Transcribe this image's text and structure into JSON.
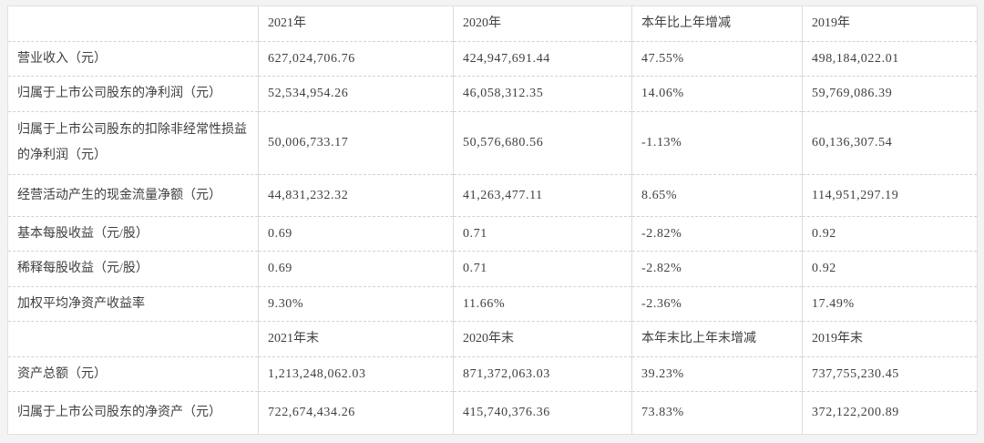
{
  "page": {
    "background_color": "#f3f3f3",
    "table_background_color": "#ffffff",
    "border_color": "#dcdcdc",
    "text_color": "#3f3f3f"
  },
  "table": {
    "section1": {
      "header": [
        "",
        "2021年",
        "2020年",
        "本年比上年增减",
        "2019年"
      ],
      "rows": [
        {
          "label": "营业收入（元）",
          "values": [
            "627,024,706.76",
            "424,947,691.44",
            "47.55%",
            "498,184,022.01"
          ]
        },
        {
          "label": "归属于上市公司股东的净利润（元）",
          "values": [
            "52,534,954.26",
            "46,058,312.35",
            "14.06%",
            "59,769,086.39"
          ]
        },
        {
          "label": "归属于上市公司股东的扣除非经常性损益的净利润（元）",
          "values": [
            "50,006,733.17",
            "50,576,680.56",
            "-1.13%",
            "60,136,307.54"
          ]
        },
        {
          "label": "经营活动产生的现金流量净额（元）",
          "values": [
            "44,831,232.32",
            "41,263,477.11",
            "8.65%",
            "114,951,297.19"
          ]
        },
        {
          "label": "基本每股收益（元/股）",
          "values": [
            "0.69",
            "0.71",
            "-2.82%",
            "0.92"
          ]
        },
        {
          "label": "稀释每股收益（元/股）",
          "values": [
            "0.69",
            "0.71",
            "-2.82%",
            "0.92"
          ]
        },
        {
          "label": "加权平均净资产收益率",
          "values": [
            "9.30%",
            "11.66%",
            "-2.36%",
            "17.49%"
          ]
        }
      ]
    },
    "section2": {
      "header": [
        "",
        "2021年末",
        "2020年末",
        "本年末比上年末增减",
        "2019年末"
      ],
      "rows": [
        {
          "label": "资产总额（元）",
          "values": [
            "1,213,248,062.03",
            "871,372,063.03",
            "39.23%",
            "737,755,230.45"
          ]
        },
        {
          "label": "归属于上市公司股东的净资产（元）",
          "values": [
            "722,674,434.26",
            "415,740,376.36",
            "73.83%",
            "372,122,200.89"
          ]
        }
      ]
    }
  }
}
